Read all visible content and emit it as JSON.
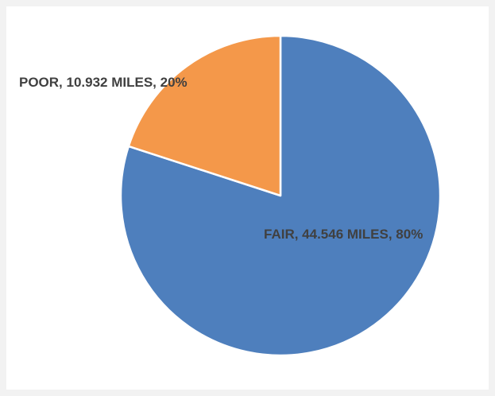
{
  "chart_data": {
    "type": "pie",
    "slices": [
      {
        "category": "FAIR",
        "miles": 44.546,
        "percent": 80,
        "label": "FAIR, 44.546 MILES, 80%",
        "color": "#4e7fbd"
      },
      {
        "category": "POOR",
        "miles": 10.932,
        "percent": 20,
        "label": "POOR, 10.932 MILES, 20%",
        "color": "#f4984a"
      }
    ],
    "start_angle_deg": 0,
    "direction": "clockwise",
    "grid": false,
    "legend": "none"
  }
}
